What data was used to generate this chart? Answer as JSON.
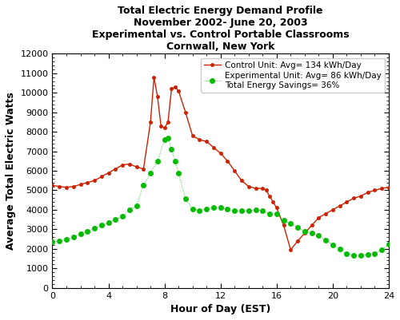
{
  "title": "Total Electric Energy Demand Profile\nNovember 2002- June 20, 2003\nExperimental vs. Control Portable Classrooms\nCornwall, New York",
  "xlabel": "Hour of Day (EST)",
  "ylabel": "Average Total Electric Watts",
  "xlim": [
    0,
    24
  ],
  "ylim": [
    0,
    12000
  ],
  "xticks": [
    0,
    4,
    8,
    12,
    16,
    20,
    24
  ],
  "yticks": [
    0,
    1000,
    2000,
    3000,
    4000,
    5000,
    6000,
    7000,
    8000,
    9000,
    10000,
    11000,
    12000
  ],
  "control_label": "Control Unit: Avg= 134 kWh/Day",
  "experimental_label": "Experimental Unit: Avg= 86 kWh/Day\nTotal Energy Savings= 36%",
  "control_color": "#cc2200",
  "experimental_color": "#00bb00",
  "control_x": [
    0.0,
    0.5,
    1.0,
    1.5,
    2.0,
    2.5,
    3.0,
    3.5,
    4.0,
    4.5,
    5.0,
    5.5,
    6.0,
    6.5,
    7.0,
    7.25,
    7.5,
    7.75,
    8.0,
    8.25,
    8.5,
    8.75,
    9.0,
    9.5,
    10.0,
    10.5,
    11.0,
    11.5,
    12.0,
    12.5,
    13.0,
    13.5,
    14.0,
    14.5,
    15.0,
    15.25,
    15.5,
    15.75,
    16.0,
    16.5,
    17.0,
    17.5,
    18.0,
    18.5,
    19.0,
    19.5,
    20.0,
    20.5,
    21.0,
    21.5,
    22.0,
    22.5,
    23.0,
    23.5,
    24.0
  ],
  "control_y": [
    5250,
    5200,
    5150,
    5200,
    5300,
    5400,
    5500,
    5700,
    5900,
    6100,
    6300,
    6350,
    6200,
    6100,
    8500,
    10800,
    9800,
    8300,
    8200,
    8500,
    10200,
    10300,
    10100,
    9000,
    7800,
    7600,
    7500,
    7200,
    6900,
    6500,
    6000,
    5500,
    5200,
    5100,
    5100,
    5000,
    4700,
    4400,
    4100,
    3200,
    1950,
    2400,
    2800,
    3200,
    3600,
    3800,
    4000,
    4200,
    4400,
    4600,
    4700,
    4900,
    5000,
    5100,
    5150
  ],
  "experimental_x": [
    0.0,
    0.5,
    1.0,
    1.5,
    2.0,
    2.5,
    3.0,
    3.5,
    4.0,
    4.5,
    5.0,
    5.5,
    6.0,
    6.5,
    7.0,
    7.5,
    8.0,
    8.25,
    8.5,
    8.75,
    9.0,
    9.5,
    10.0,
    10.5,
    11.0,
    11.5,
    12.0,
    12.5,
    13.0,
    13.5,
    14.0,
    14.5,
    15.0,
    15.5,
    16.0,
    16.5,
    17.0,
    17.5,
    18.0,
    18.5,
    19.0,
    19.5,
    20.0,
    20.5,
    21.0,
    21.5,
    22.0,
    22.5,
    23.0,
    23.5,
    24.0
  ],
  "experimental_y": [
    2350,
    2400,
    2500,
    2600,
    2750,
    2900,
    3050,
    3200,
    3350,
    3500,
    3650,
    4000,
    4200,
    5250,
    5900,
    6500,
    7600,
    7700,
    7100,
    6500,
    5900,
    4550,
    4050,
    3950,
    4050,
    4100,
    4100,
    4050,
    3950,
    3950,
    3950,
    4000,
    3950,
    3800,
    3800,
    3450,
    3300,
    3100,
    2900,
    2800,
    2700,
    2450,
    2200,
    2000,
    1750,
    1650,
    1650,
    1700,
    1750,
    1950,
    2250
  ],
  "title_fontsize": 9,
  "axis_label_fontsize": 9,
  "tick_fontsize": 8,
  "legend_fontsize": 7.5
}
